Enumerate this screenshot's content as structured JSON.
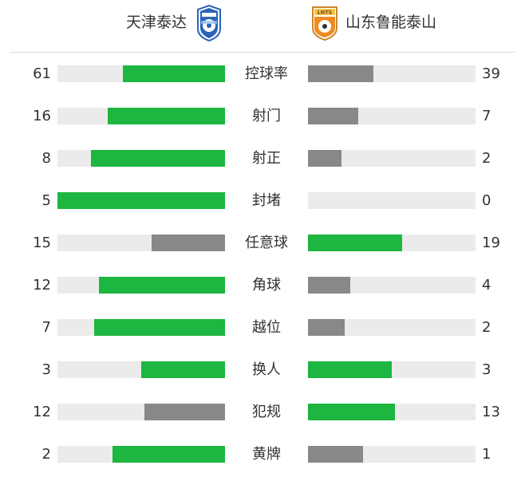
{
  "header": {
    "home_team": "天津泰达",
    "away_team": "山东鲁能泰山",
    "away_badge_text": "LNTS"
  },
  "colors": {
    "winner": "#1db640",
    "loser": "#888888",
    "track": "#ebebeb"
  },
  "stats": [
    {
      "label": "控球率",
      "home": "61",
      "away": "39",
      "home_fill": 0.61,
      "away_fill": 0.39,
      "home_color": "green",
      "away_color": "gray"
    },
    {
      "label": "射门",
      "home": "16",
      "away": "7",
      "home_fill": 0.7,
      "away_fill": 0.3,
      "home_color": "green",
      "away_color": "gray"
    },
    {
      "label": "射正",
      "home": "8",
      "away": "2",
      "home_fill": 0.8,
      "away_fill": 0.2,
      "home_color": "green",
      "away_color": "gray"
    },
    {
      "label": "封堵",
      "home": "5",
      "away": "0",
      "home_fill": 1.0,
      "away_fill": 0.0,
      "home_color": "green",
      "away_color": "gray"
    },
    {
      "label": "任意球",
      "home": "15",
      "away": "19",
      "home_fill": 0.44,
      "away_fill": 0.56,
      "home_color": "gray",
      "away_color": "green"
    },
    {
      "label": "角球",
      "home": "12",
      "away": "4",
      "home_fill": 0.75,
      "away_fill": 0.25,
      "home_color": "green",
      "away_color": "gray"
    },
    {
      "label": "越位",
      "home": "7",
      "away": "2",
      "home_fill": 0.78,
      "away_fill": 0.22,
      "home_color": "green",
      "away_color": "gray"
    },
    {
      "label": "换人",
      "home": "3",
      "away": "3",
      "home_fill": 0.5,
      "away_fill": 0.5,
      "home_color": "green",
      "away_color": "green"
    },
    {
      "label": "犯规",
      "home": "12",
      "away": "13",
      "home_fill": 0.48,
      "away_fill": 0.52,
      "home_color": "gray",
      "away_color": "green"
    },
    {
      "label": "黄牌",
      "home": "2",
      "away": "1",
      "home_fill": 0.67,
      "away_fill": 0.33,
      "home_color": "green",
      "away_color": "gray"
    }
  ]
}
